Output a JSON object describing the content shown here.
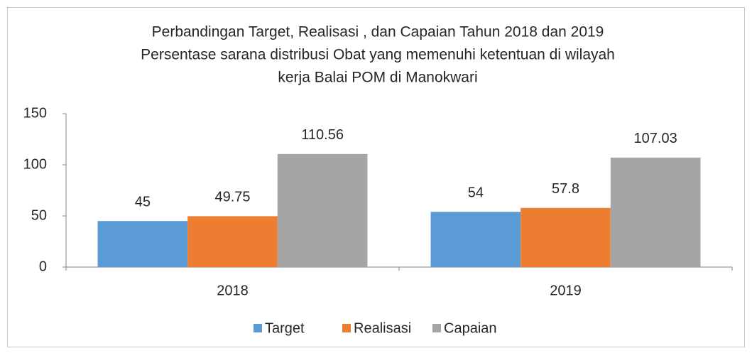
{
  "chart_data": {
    "type": "bar",
    "title": [
      "Perbandingan Target, Realisasi , dan Capaian Tahun 2018 dan 2019",
      "Persentase sarana distribusi Obat yang memenuhi ketentuan di wilayah",
      "kerja Balai POM di Manokwari"
    ],
    "categories": [
      "2018",
      "2019"
    ],
    "series": [
      {
        "name": "Target",
        "color": "#5b9bd5",
        "values": [
          45,
          54
        ]
      },
      {
        "name": "Realisasi",
        "color": "#ed7d31",
        "values": [
          49.75,
          57.8
        ]
      },
      {
        "name": "Capaian",
        "color": "#a5a5a5",
        "values": [
          110.56,
          107.03
        ]
      }
    ],
    "ylim": [
      0,
      150
    ],
    "yticks": [
      0,
      50,
      100,
      150
    ],
    "grid": false,
    "legend": "bottom"
  }
}
